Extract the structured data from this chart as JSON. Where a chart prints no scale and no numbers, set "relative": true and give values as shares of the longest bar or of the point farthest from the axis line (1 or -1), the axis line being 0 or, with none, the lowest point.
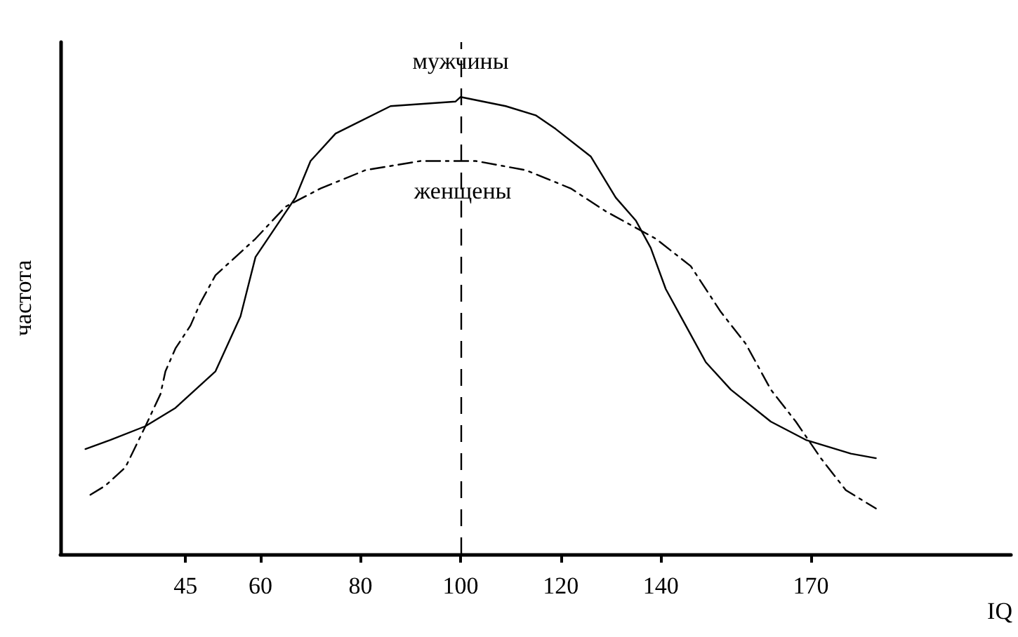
{
  "chart_data": {
    "type": "line",
    "xlabel": "IQ",
    "ylabel": "частота",
    "relative": true,
    "xlim": [
      20,
      210
    ],
    "xticks": [
      45,
      60,
      80,
      100,
      120,
      140,
      170
    ],
    "series": [
      {
        "name": "мужчины",
        "color": "#000000",
        "line_style": "solid",
        "x": [
          25,
          30,
          37,
          43,
          47,
          51,
          56,
          59,
          67,
          70,
          75,
          86,
          99,
          100,
          109,
          115,
          119,
          126,
          131,
          135,
          138,
          141,
          145,
          149,
          154,
          162,
          169,
          178,
          183
        ],
        "values": [
          0.23,
          0.25,
          0.28,
          0.32,
          0.36,
          0.4,
          0.52,
          0.65,
          0.78,
          0.86,
          0.92,
          0.98,
          0.99,
          1.0,
          0.98,
          0.96,
          0.93,
          0.87,
          0.78,
          0.73,
          0.67,
          0.58,
          0.5,
          0.42,
          0.36,
          0.29,
          0.25,
          0.22,
          0.21
        ]
      },
      {
        "name": "женщены",
        "color": "#000000",
        "line_style": "dashed",
        "x": [
          26,
          29,
          33,
          37,
          40,
          41,
          43,
          46,
          48,
          51,
          56,
          59,
          65,
          72,
          81,
          92,
          100,
          103,
          113,
          122,
          129,
          139,
          146,
          152,
          157,
          162,
          167,
          172,
          177,
          183
        ],
        "values": [
          0.13,
          0.15,
          0.19,
          0.28,
          0.35,
          0.4,
          0.45,
          0.5,
          0.55,
          0.61,
          0.66,
          0.69,
          0.76,
          0.8,
          0.84,
          0.86,
          0.86,
          0.86,
          0.84,
          0.8,
          0.75,
          0.69,
          0.63,
          0.53,
          0.46,
          0.36,
          0.29,
          0.21,
          0.14,
          0.1
        ]
      }
    ],
    "ref_lines": [
      {
        "axis": "x",
        "value": 100,
        "line_style": "dashed",
        "color": "#000000"
      }
    ],
    "legend": false,
    "grid": false,
    "marker": "none"
  }
}
